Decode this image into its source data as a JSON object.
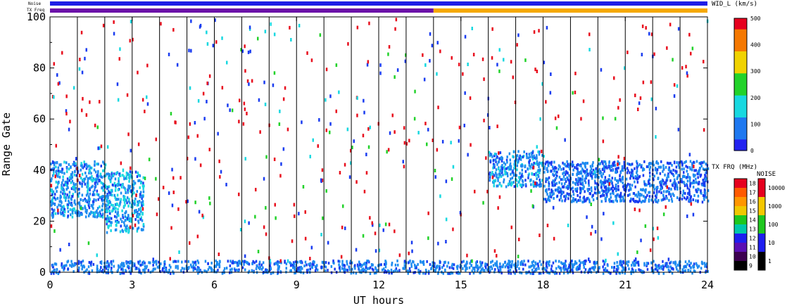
{
  "chart_data": {
    "type": "heatmap",
    "xlabel": "UT hours",
    "ylabel": "Range Gate",
    "xlim": [
      0,
      24
    ],
    "ylim": [
      0,
      100
    ],
    "x_ticks": [
      "0",
      "3",
      "6",
      "9",
      "12",
      "15",
      "18",
      "21",
      "24"
    ],
    "y_ticks": [
      "0",
      "20",
      "40",
      "60",
      "80",
      "100"
    ],
    "x_tick_values": [
      0,
      3,
      6,
      9,
      12,
      15,
      18,
      21,
      24
    ],
    "y_tick_values": [
      0,
      20,
      40,
      60,
      80,
      100
    ],
    "scan_boundaries_ut": [
      1,
      2,
      3,
      4,
      5,
      6,
      7,
      8,
      9,
      10,
      11,
      12,
      13,
      14,
      15,
      16,
      17,
      18,
      19,
      20,
      21,
      22,
      23
    ],
    "status_bars": {
      "noise_label": "Noise",
      "txfreq_label": "TX Freq",
      "noise_color": "#1e1ee6",
      "txfreq_segments": [
        {
          "from_ut": 0,
          "to_ut": 14,
          "color": "#6a0fa8"
        },
        {
          "from_ut": 14,
          "to_ut": 24,
          "color": "#f5a800"
        }
      ]
    },
    "colorbars": [
      {
        "title": "WID_L (km/s)",
        "ticks": [
          "500",
          "400",
          "300",
          "200",
          "100",
          "0"
        ],
        "tick_values": [
          500,
          400,
          300,
          200,
          100,
          0
        ],
        "range": [
          0,
          500
        ],
        "type": "continuous"
      },
      {
        "title": "TX FRQ (MHz)",
        "ticks": [
          "18",
          "17",
          "16",
          "15",
          "14",
          "13",
          "12",
          "11",
          "10",
          "9"
        ],
        "tick_values": [
          18,
          17,
          16,
          15,
          14,
          13,
          12,
          11,
          10,
          9
        ],
        "colors": [
          "#e6001e",
          "#ff5a00",
          "#ff9600",
          "#f0c800",
          "#1ec81e",
          "#00c8aa",
          "#1e1ef0",
          "#5a0fb4",
          "#3c0050",
          "#000000"
        ]
      },
      {
        "title": "NOISE",
        "ticks": [
          "10000",
          "1000",
          "100",
          "10",
          "1"
        ],
        "tick_values": [
          10000,
          1000,
          100,
          10,
          1
        ],
        "colors": [
          "#e6001e",
          "#f5c800",
          "#1ec81e",
          "#1e1ef0",
          "#000000"
        ]
      }
    ],
    "data_regions": [
      {
        "desc": "ground scatter band",
        "ut": [
          0,
          24
        ],
        "gate": [
          0,
          5
        ],
        "width": 50
      },
      {
        "desc": "early ionospheric scatter",
        "ut": [
          0,
          2
        ],
        "gate": [
          22,
          44
        ],
        "width": 60
      },
      {
        "desc": "descending echo",
        "ut": [
          2,
          3.4
        ],
        "gate": [
          16,
          40
        ],
        "width": 70
      },
      {
        "desc": "late ionospheric band",
        "ut": [
          18,
          24
        ],
        "gate": [
          28,
          44
        ],
        "width": 40
      },
      {
        "desc": "onset of late band",
        "ut": [
          16,
          18
        ],
        "gate": [
          34,
          48
        ],
        "width": 60
      }
    ],
    "grid": false
  }
}
